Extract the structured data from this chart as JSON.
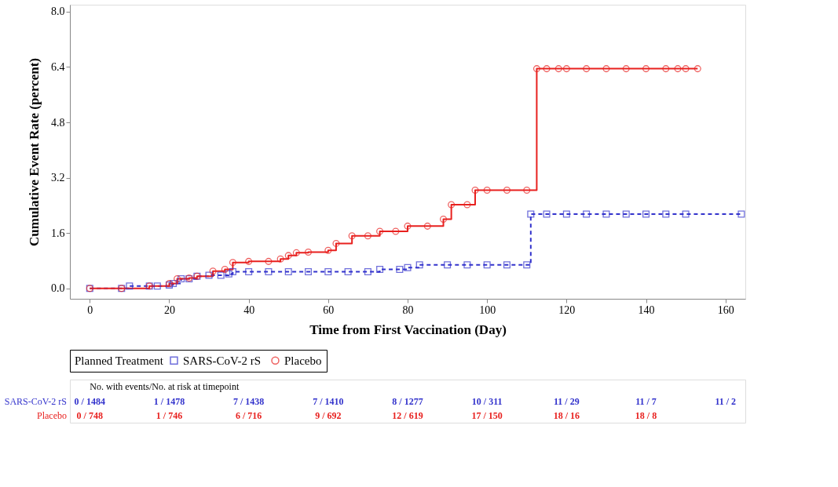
{
  "chart_data": {
    "type": "step",
    "xlabel": "Time from First Vaccination (Day)",
    "ylabel": "Cumulative Event Rate (percent)",
    "legend_title": "Planned Treatment",
    "legend": "bottom",
    "grid": false,
    "xlim": [
      -5,
      165
    ],
    "xticks": [
      0,
      20,
      40,
      60,
      80,
      100,
      120,
      140,
      160
    ],
    "ylim": [
      -0.3,
      8.2
    ],
    "yticks": [
      {
        "value": 0,
        "label": "0.0"
      },
      {
        "value": 1.6,
        "label": "1.6"
      },
      {
        "value": 3.2,
        "label": "3.2"
      },
      {
        "value": 4.8,
        "label": "4.8"
      },
      {
        "value": 6.4,
        "label": "6.4"
      },
      {
        "value": 8,
        "label": "8.0"
      }
    ],
    "series": [
      {
        "name": "SARS-CoV-2 rS",
        "color": "#3333cc",
        "line_style": "dashed",
        "marker": "square",
        "x": [
          0,
          8,
          10,
          15,
          17,
          20,
          21,
          23,
          25,
          27,
          30,
          33,
          35,
          36,
          40,
          45,
          50,
          55,
          60,
          65,
          70,
          73,
          78,
          80,
          83,
          90,
          95,
          100,
          105,
          110,
          111,
          115,
          120,
          125,
          130,
          135,
          140,
          145,
          150,
          164
        ],
        "values": [
          0,
          0,
          0.07,
          0.07,
          0.07,
          0.1,
          0.14,
          0.28,
          0.28,
          0.35,
          0.38,
          0.38,
          0.42,
          0.48,
          0.48,
          0.48,
          0.48,
          0.48,
          0.48,
          0.48,
          0.48,
          0.55,
          0.55,
          0.6,
          0.68,
          0.68,
          0.68,
          0.68,
          0.68,
          0.68,
          2.15,
          2.15,
          2.15,
          2.15,
          2.15,
          2.15,
          2.15,
          2.15,
          2.15,
          2.15
        ]
      },
      {
        "name": "Placebo",
        "color": "#e8211f",
        "line_style": "solid",
        "marker": "circle",
        "x": [
          0,
          8,
          15,
          20,
          22,
          25,
          27,
          31,
          34,
          36,
          40,
          45,
          48,
          50,
          52,
          55,
          60,
          62,
          66,
          70,
          73,
          77,
          80,
          85,
          89,
          91,
          95,
          97,
          100,
          105,
          110,
          112.5,
          115,
          118,
          120,
          125,
          130,
          135,
          140,
          145,
          148,
          150,
          153
        ],
        "values": [
          0,
          0,
          0.07,
          0.14,
          0.28,
          0.3,
          0.35,
          0.5,
          0.55,
          0.75,
          0.78,
          0.78,
          0.85,
          0.95,
          1.03,
          1.05,
          1.1,
          1.3,
          1.52,
          1.52,
          1.65,
          1.65,
          1.8,
          1.8,
          2.0,
          2.42,
          2.42,
          2.84,
          2.84,
          2.84,
          2.84,
          6.35,
          6.35,
          6.35,
          6.35,
          6.35,
          6.35,
          6.35,
          6.35,
          6.35,
          6.35,
          6.35,
          6.35
        ]
      }
    ],
    "annotations": [
      "No. with events/No. at risk at timepoint",
      "SARS-CoV-2 rS",
      "0 / 1484",
      "1 / 1478",
      "7 / 1438",
      "7 / 1410",
      "8 / 1277",
      "10 / 311",
      "11 / 29",
      "11 / 7",
      "11 / 2",
      "Placebo",
      "0 / 748",
      "1 / 746",
      "6 / 716",
      "9 / 692",
      "12 / 619",
      "17 / 150",
      "18 / 16",
      "18 / 8"
    ]
  }
}
